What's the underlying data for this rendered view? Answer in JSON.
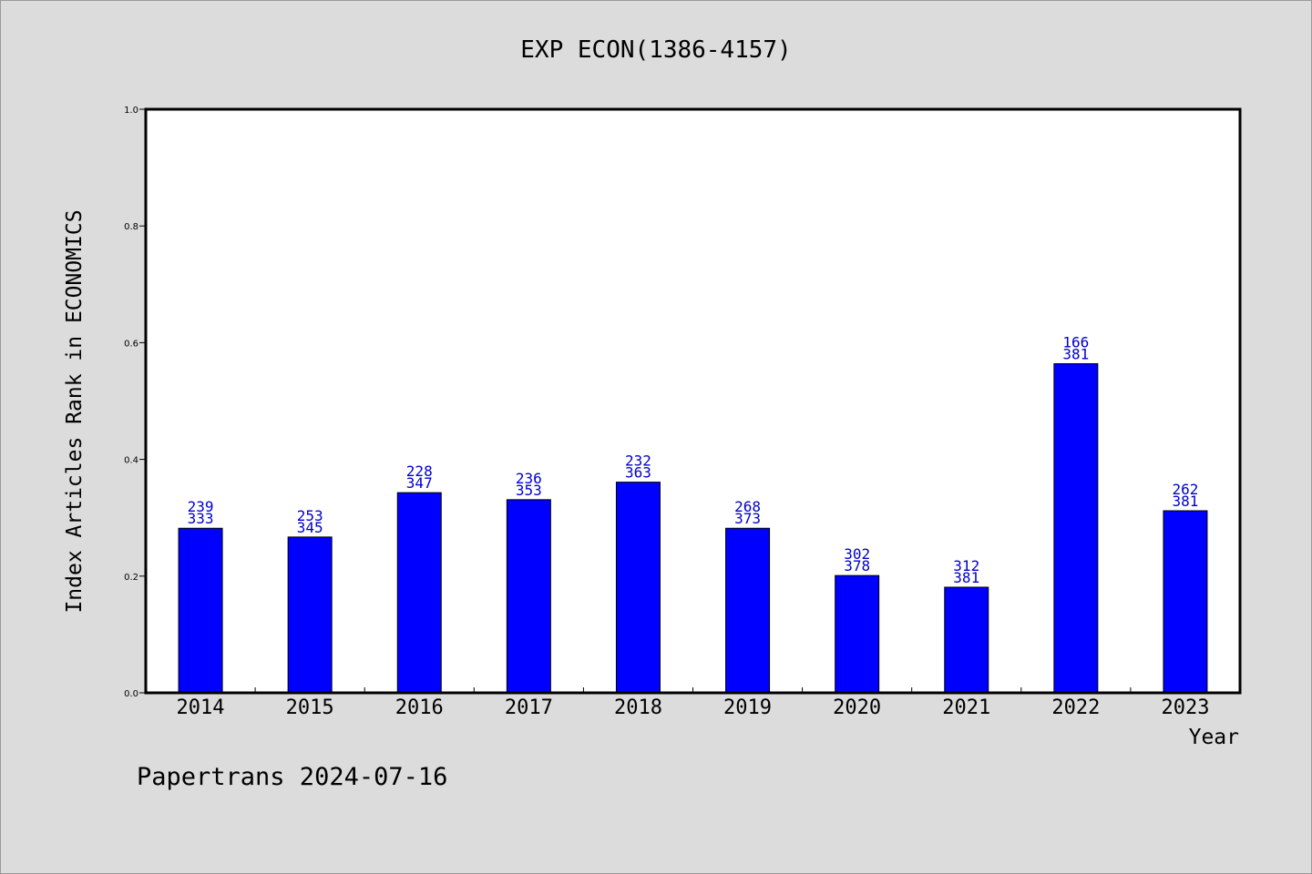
{
  "chart_data": {
    "type": "bar",
    "title": "EXP ECON(1386-4157)",
    "xlabel": "Year",
    "ylabel": "Index Articles Rank in ECONOMICS",
    "ylim": [
      0,
      1.0
    ],
    "yticks": [
      "0.0",
      "0.2",
      "0.4",
      "0.6",
      "0.8",
      "1.0"
    ],
    "categories": [
      "2014",
      "2015",
      "2016",
      "2017",
      "2018",
      "2019",
      "2020",
      "2021",
      "2022",
      "2023"
    ],
    "values": [
      0.282,
      0.267,
      0.343,
      0.331,
      0.361,
      0.282,
      0.201,
      0.181,
      0.564,
      0.312
    ],
    "rank_labels": [
      "239",
      "253",
      "228",
      "236",
      "232",
      "268",
      "302",
      "312",
      "166",
      "262"
    ],
    "total_labels": [
      "333",
      "345",
      "347",
      "353",
      "363",
      "373",
      "378",
      "381",
      "381",
      "381"
    ],
    "grid": false,
    "legend": "none",
    "bar_color": "#0000ff",
    "label_color": "#0000cc"
  },
  "footer": {
    "text": "Papertrans 2024-07-16"
  },
  "colors": {
    "background": "#dcdcdc",
    "plot_background": "#ffffff",
    "bar": "#0000ff"
  }
}
